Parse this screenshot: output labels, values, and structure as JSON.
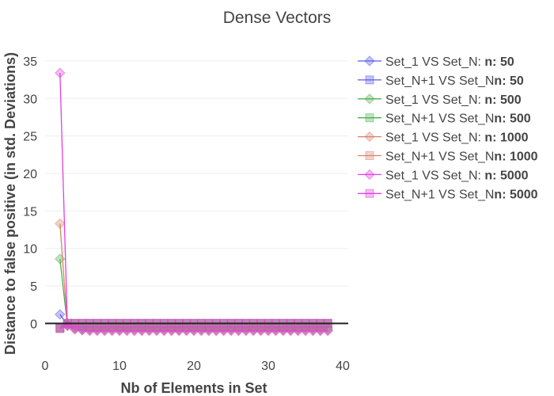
{
  "chart_data": {
    "type": "line",
    "title": "Dense Vectors",
    "xlabel": "Nb of Elements in Set",
    "ylabel": "Distance to false positive (in std. Deviations)",
    "xlim": [
      0,
      40
    ],
    "ylim": [
      -2.5,
      37
    ],
    "x_ticks": [
      "0",
      "10",
      "20",
      "30",
      "40"
    ],
    "y_ticks": [
      "0",
      "5",
      "10",
      "15",
      "20",
      "25",
      "30",
      "35"
    ],
    "x_tick_values": [
      0,
      10,
      20,
      30,
      40
    ],
    "y_tick_values": [
      0,
      5,
      10,
      15,
      20,
      25,
      30,
      35
    ],
    "grid": true,
    "zero_line": true,
    "legend_position": "right",
    "x": [
      2,
      3,
      4,
      5,
      6,
      7,
      8,
      9,
      10,
      11,
      12,
      13,
      14,
      15,
      16,
      17,
      18,
      19,
      20,
      21,
      22,
      23,
      24,
      25,
      26,
      27,
      28,
      29,
      30,
      31,
      32,
      33,
      34,
      35,
      36,
      37,
      38
    ],
    "series": [
      {
        "name": "Set_1 VS Set_N: ",
        "name_bold": "n: 50",
        "marker": "diamond",
        "color": "#5a5ae8",
        "values": [
          1.2,
          -0.2,
          -0.5,
          -0.6,
          -0.6,
          -0.6,
          -0.6,
          -0.6,
          -0.6,
          -0.6,
          -0.6,
          -0.6,
          -0.6,
          -0.6,
          -0.6,
          -0.6,
          -0.6,
          -0.6,
          -0.6,
          -0.6,
          -0.6,
          -0.6,
          -0.6,
          -0.6,
          -0.6,
          -0.6,
          -0.6,
          -0.6,
          -0.6,
          -0.6,
          -0.6,
          -0.6,
          -0.6,
          -0.6,
          -0.6,
          -0.6,
          -0.6
        ]
      },
      {
        "name": "Set_N+1 VS Set_N",
        "name_bold": "n: 50",
        "marker": "square",
        "color": "#5a5ae8",
        "values": [
          -0.5,
          0.0,
          0.0,
          0.0,
          0.0,
          0.0,
          0.0,
          0.0,
          0.0,
          0.0,
          0.0,
          0.0,
          0.0,
          0.0,
          0.0,
          0.0,
          0.0,
          0.0,
          0.0,
          0.0,
          0.0,
          0.0,
          0.0,
          0.0,
          0.0,
          0.0,
          0.0,
          0.0,
          0.0,
          0.0,
          0.0,
          0.0,
          0.0,
          0.0,
          0.0,
          0.0,
          0.0
        ]
      },
      {
        "name": "Set_1 VS Set_N: ",
        "name_bold": "n: 500",
        "marker": "diamond",
        "color": "#4caf50",
        "values": [
          8.6,
          -0.3,
          -0.7,
          -0.8,
          -0.8,
          -0.8,
          -0.8,
          -0.8,
          -0.8,
          -0.8,
          -0.8,
          -0.8,
          -0.8,
          -0.8,
          -0.8,
          -0.8,
          -0.8,
          -0.8,
          -0.8,
          -0.8,
          -0.8,
          -0.8,
          -0.8,
          -0.8,
          -0.8,
          -0.8,
          -0.8,
          -0.8,
          -0.8,
          -0.8,
          -0.8,
          -0.8,
          -0.8,
          -0.8,
          -0.8,
          -0.8,
          -0.8
        ]
      },
      {
        "name": "Set_N+1 VS Set_N",
        "name_bold": "n: 500",
        "marker": "square",
        "color": "#4caf50",
        "values": [
          -0.6,
          0.0,
          0.0,
          0.0,
          0.0,
          0.0,
          0.0,
          0.0,
          0.0,
          0.0,
          0.0,
          0.0,
          0.0,
          0.0,
          0.0,
          0.0,
          0.0,
          0.0,
          0.0,
          0.0,
          0.0,
          0.0,
          0.0,
          0.0,
          0.0,
          0.0,
          0.0,
          0.0,
          0.0,
          0.0,
          0.0,
          0.0,
          0.0,
          0.0,
          0.0,
          0.0,
          0.0
        ]
      },
      {
        "name": "Set_1 VS Set_N: ",
        "name_bold": "n: 1000",
        "marker": "diamond",
        "color": "#d9826a",
        "values": [
          13.3,
          -0.3,
          -0.7,
          -0.9,
          -0.9,
          -0.9,
          -0.9,
          -0.9,
          -0.9,
          -0.9,
          -0.9,
          -0.9,
          -0.9,
          -0.9,
          -0.9,
          -0.9,
          -0.9,
          -0.9,
          -0.9,
          -0.9,
          -0.9,
          -0.9,
          -0.9,
          -0.9,
          -0.9,
          -0.9,
          -0.9,
          -0.9,
          -0.9,
          -0.9,
          -0.9,
          -0.9,
          -0.9,
          -0.9,
          -0.9,
          -0.9,
          -0.9
        ]
      },
      {
        "name": "Set_N+1 VS Set_N",
        "name_bold": "n: 1000",
        "marker": "square",
        "color": "#d9826a",
        "values": [
          -0.7,
          0.0,
          0.0,
          0.0,
          0.0,
          0.0,
          0.0,
          0.0,
          0.0,
          0.0,
          0.0,
          0.0,
          0.0,
          0.0,
          0.0,
          0.0,
          0.0,
          0.0,
          0.0,
          0.0,
          0.0,
          0.0,
          0.0,
          0.0,
          0.0,
          0.0,
          0.0,
          0.0,
          0.0,
          0.0,
          0.0,
          0.0,
          0.0,
          0.0,
          0.0,
          0.0,
          0.0
        ]
      },
      {
        "name": "Set_1 VS Set_N: ",
        "name_bold": "n: 5000",
        "marker": "diamond",
        "color": "#e040e0",
        "values": [
          33.4,
          -0.3,
          -0.8,
          -0.9,
          -1.0,
          -1.0,
          -1.0,
          -1.0,
          -1.0,
          -1.0,
          -1.0,
          -1.0,
          -1.0,
          -1.0,
          -1.0,
          -1.0,
          -1.0,
          -1.0,
          -1.0,
          -1.0,
          -1.0,
          -1.0,
          -1.0,
          -1.0,
          -1.0,
          -1.0,
          -1.0,
          -1.0,
          -1.0,
          -1.0,
          -1.0,
          -1.0,
          -1.0,
          -1.0,
          -1.0,
          -1.0,
          -1.0
        ]
      },
      {
        "name": "Set_N+1 VS Set_N",
        "name_bold": "n: 5000",
        "marker": "square",
        "color": "#e040e0",
        "values": [
          -0.7,
          0.0,
          0.0,
          0.0,
          0.0,
          0.0,
          0.0,
          0.0,
          0.0,
          0.0,
          0.0,
          0.0,
          0.0,
          0.0,
          0.0,
          0.0,
          0.0,
          0.0,
          0.0,
          0.0,
          0.0,
          0.0,
          0.0,
          0.0,
          0.0,
          0.0,
          0.0,
          0.0,
          0.0,
          0.0,
          0.0,
          0.0,
          0.0,
          0.0,
          0.0,
          0.0,
          0.0
        ]
      }
    ]
  }
}
